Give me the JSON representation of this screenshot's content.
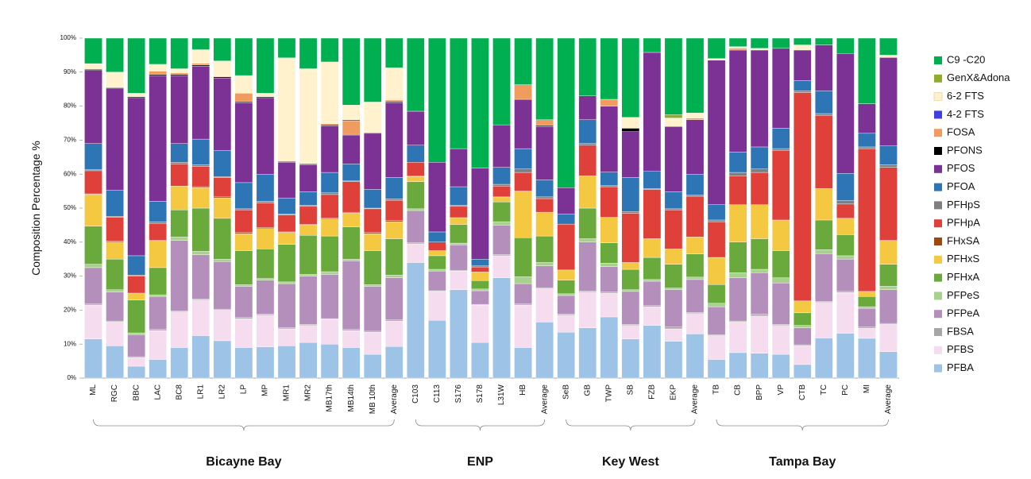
{
  "chart_data": {
    "type": "stacked_bar",
    "y_label": "Composition Percentage %",
    "categories": [
      "ML",
      "RGC",
      "BBC",
      "LAC",
      "BC8",
      "LR1",
      "LR2",
      "LP",
      "MP",
      "MR1",
      "MR2",
      "MB17th",
      "MB14th",
      "MB 10th",
      "Average",
      "C103",
      "C113",
      "S176",
      "S178",
      "L31W",
      "HB",
      "Average",
      "SeB",
      "GB",
      "TWP",
      "SB",
      "FZB",
      "EKP",
      "Average",
      "TB",
      "CB",
      "BPP",
      "VP",
      "CTB",
      "TC",
      "PC",
      "MI",
      "Average"
    ],
    "groups": [
      {
        "label": "Bicayne Bay",
        "span": [
          0,
          14
        ]
      },
      {
        "label": "ENP",
        "span": [
          15,
          21
        ]
      },
      {
        "label": "Key West",
        "span": [
          22,
          28
        ]
      },
      {
        "label": "Tampa Bay",
        "span": [
          29,
          37
        ]
      }
    ],
    "ylim": [
      0,
      100
    ],
    "yticks": [
      {
        "value": 0,
        "label": "0%"
      },
      {
        "value": 10,
        "label": "10%"
      },
      {
        "value": 20,
        "label": "20%"
      },
      {
        "value": 30,
        "label": "30%"
      },
      {
        "value": 40,
        "label": "40%"
      },
      {
        "value": 50,
        "label": "50%"
      },
      {
        "value": 60,
        "label": "60%"
      },
      {
        "value": 70,
        "label": "70%"
      },
      {
        "value": 80,
        "label": "80%"
      },
      {
        "value": 90,
        "label": "90%"
      },
      {
        "value": 100,
        "label": "100%"
      }
    ],
    "legend": "right",
    "series": [
      {
        "name": "PFBA",
        "color": "#9dc3e6",
        "values": [
          11.5,
          9.5,
          3.5,
          5.5,
          9,
          12.5,
          11,
          9,
          9.2,
          9.5,
          10.5,
          10,
          9,
          7,
          9.3,
          34,
          17,
          26,
          10.5,
          29.5,
          9,
          16.5,
          13.5,
          14.8,
          18,
          11.5,
          15.5,
          10.8,
          13,
          5.5,
          7.5,
          7.3,
          7,
          4,
          11.8,
          13.2,
          11.7,
          7.8
        ]
      },
      {
        "name": "PFBS",
        "color": "#f6dcef",
        "values": [
          10,
          7,
          2.5,
          8.5,
          10.5,
          10.5,
          9,
          8.5,
          9.3,
          5,
          5,
          7.3,
          5,
          6.5,
          7.5,
          5.5,
          8.5,
          5.5,
          11,
          6.5,
          12.5,
          9.8,
          5,
          10.5,
          7,
          4,
          5.5,
          3.7,
          6,
          7,
          9,
          11,
          8.5,
          5.5,
          10.5,
          12,
          3,
          8
        ]
      },
      {
        "name": "FBSA",
        "color": "#a6a6a6",
        "values": [
          0.3,
          0.3,
          0.3,
          0.3,
          0.3,
          0.3,
          0.3,
          0.3,
          0.3,
          0.3,
          0.3,
          0.2,
          0.3,
          0.3,
          0.3,
          0.3,
          0.2,
          0.2,
          0.2,
          0.3,
          0.3,
          0.3,
          0.3,
          0.3,
          0.3,
          0.3,
          0.3,
          0.5,
          0.3,
          0.3,
          0.3,
          0.5,
          0.3,
          0.3,
          0.3,
          0.3,
          0.3,
          0.3
        ]
      },
      {
        "name": "PFPeA",
        "color": "#b48fbc",
        "values": [
          10.7,
          8.5,
          6.5,
          9.7,
          20.7,
          13,
          14,
          9.2,
          10,
          13,
          14.2,
          13,
          20.2,
          13.2,
          12.4,
          9.5,
          5.8,
          7.5,
          4,
          8.7,
          6,
          6.4,
          5.5,
          14.4,
          7.5,
          9.7,
          7.2,
          11,
          9.7,
          8.2,
          12.7,
          12.2,
          12.2,
          5,
          14,
          9.5,
          5.5,
          9.9
        ]
      },
      {
        "name": "PFPeS",
        "color": "#a9d18e",
        "values": [
          1,
          0.7,
          0.5,
          0.5,
          1,
          1,
          0.7,
          0.5,
          0.5,
          0.5,
          0.5,
          0.8,
          0.5,
          0.5,
          0.8,
          0.5,
          0.5,
          0.5,
          0.5,
          1,
          2,
          1,
          0.5,
          1,
          1,
          0.5,
          0.5,
          0.5,
          0.7,
          1,
          1.5,
          1,
          1.5,
          0.7,
          1.2,
          1,
          0.5,
          1
        ]
      },
      {
        "name": "PFHxA",
        "color": "#6aaa3c",
        "values": [
          11.2,
          9,
          9.7,
          8,
          8,
          12.7,
          12,
          10,
          8.7,
          11,
          11.5,
          10.5,
          9.5,
          10,
          10.7,
          8,
          4,
          5.5,
          2.5,
          5.8,
          11.5,
          7.8,
          4,
          9,
          6,
          6,
          6.5,
          7,
          6.8,
          5.5,
          9,
          9,
          8,
          3.7,
          8.7,
          6.2,
          3,
          6.5
        ]
      },
      {
        "name": "PFHxS",
        "color": "#f5c842",
        "values": [
          9.3,
          5,
          2,
          8,
          7,
          6,
          6,
          5,
          6,
          3.5,
          3,
          5,
          4,
          5,
          5,
          1.5,
          1.5,
          2,
          2.5,
          1.5,
          13.7,
          7,
          3,
          9.5,
          7.5,
          2,
          5.5,
          4.5,
          5,
          8,
          11,
          10,
          9,
          3.5,
          9.3,
          4.8,
          1.5,
          7
        ]
      },
      {
        "name": "FHxSA",
        "color": "#9e480e",
        "values": [
          0.2,
          0.3,
          0,
          0,
          0,
          0.3,
          0.3,
          0.3,
          0.3,
          0.2,
          0.2,
          0.2,
          0.3,
          0.3,
          0.3,
          0.2,
          0,
          0,
          0,
          0,
          0,
          0,
          0,
          0,
          0,
          0,
          0,
          0,
          0,
          0,
          0,
          0,
          0,
          0,
          0,
          0,
          0,
          0
        ]
      },
      {
        "name": "PFHpA",
        "color": "#e0403a",
        "values": [
          6.8,
          7,
          5,
          5,
          6.5,
          6,
          5.7,
          6.7,
          7.2,
          5,
          5.3,
          7,
          9,
          7,
          6,
          4,
          2.5,
          3.3,
          1.5,
          3.2,
          5.5,
          4,
          13.5,
          9,
          9,
          14.5,
          14.5,
          11.5,
          12,
          10.5,
          8.5,
          9.5,
          20.5,
          61.3,
          21.5,
          4.2,
          42,
          21.5
        ]
      },
      {
        "name": "PFHpS",
        "color": "#7f7f7f",
        "values": [
          0.3,
          0.3,
          0.3,
          0.5,
          0.5,
          0.5,
          0.3,
          0.3,
          0.5,
          0.3,
          0.3,
          0.5,
          0.2,
          0.2,
          0.4,
          0,
          0,
          0.3,
          0.3,
          0.5,
          1,
          0.5,
          0,
          0.5,
          0.3,
          0.5,
          0.3,
          0.3,
          0.3,
          0.5,
          1,
          1,
          0.5,
          0.5,
          0.5,
          1,
          0.5,
          0.8
        ]
      },
      {
        "name": "PFOA",
        "color": "#2e75b6",
        "values": [
          7.7,
          7.7,
          5.7,
          6,
          5.5,
          7.5,
          7.7,
          7.7,
          8,
          4.7,
          4,
          6,
          5,
          5.5,
          6.3,
          5,
          3,
          5.5,
          2,
          5,
          6,
          5,
          3,
          7,
          4,
          10,
          5,
          5,
          6.2,
          4.5,
          6,
          6.5,
          6,
          3,
          6.7,
          8,
          4,
          5.5
        ]
      },
      {
        "name": "PFOS",
        "color": "#7b3294",
        "values": [
          21.5,
          30,
          46.5,
          37,
          20,
          21.5,
          21.3,
          23.5,
          22.5,
          10.5,
          8,
          13.7,
          8.5,
          16.5,
          22,
          10,
          20.5,
          11.2,
          26.8,
          12.5,
          14.5,
          15.7,
          7.7,
          7,
          19.4,
          13.5,
          35,
          19.2,
          16,
          42.5,
          30,
          28.5,
          23.5,
          9,
          13.5,
          35.3,
          8.7,
          26
        ]
      },
      {
        "name": "PFONS",
        "color": "#000000",
        "values": [
          0.3,
          0.2,
          0.3,
          0.3,
          0.3,
          0.3,
          0.3,
          0.3,
          0.3,
          0.2,
          0.2,
          0.3,
          0.2,
          0.2,
          0.3,
          0,
          0,
          0,
          0,
          0,
          0,
          0.3,
          0,
          0,
          0,
          1,
          0,
          0,
          0,
          0,
          0,
          0,
          0,
          0,
          0,
          0,
          0,
          0
        ]
      },
      {
        "name": "FOSA",
        "color": "#f19c5f",
        "values": [
          0.2,
          0,
          0,
          1,
          0.5,
          0.5,
          0.2,
          2.5,
          0,
          0,
          0,
          0.3,
          4,
          0,
          0.5,
          0,
          0,
          0,
          0,
          0,
          4.3,
          1.7,
          0,
          0,
          2,
          0,
          0,
          0,
          0.5,
          0,
          0.5,
          0,
          0,
          0,
          0,
          0,
          0,
          0.2
        ]
      },
      {
        "name": "4-2 FTS",
        "color": "#4040e0",
        "values": [
          0,
          0,
          0,
          0,
          0,
          0,
          0,
          0,
          0,
          0,
          0,
          0,
          0.3,
          0,
          0,
          0,
          0,
          0,
          0,
          0,
          0,
          0,
          0,
          0,
          0,
          0,
          0,
          0,
          0,
          0,
          0,
          0,
          0,
          0,
          0,
          0,
          0,
          0
        ]
      },
      {
        "name": "6-2 FTS",
        "color": "#fff2cc",
        "values": [
          1.5,
          4.5,
          1,
          2,
          1.2,
          4,
          4.5,
          5.2,
          1,
          30.5,
          28,
          18.2,
          4.3,
          9,
          9.5,
          0,
          0,
          0,
          0,
          0,
          0,
          0,
          0,
          0,
          0,
          3.2,
          0,
          2.5,
          1.5,
          0.5,
          0.5,
          0.5,
          0,
          1.5,
          0,
          0,
          0,
          0.5
        ]
      },
      {
        "name": "GenX&Adona",
        "color": "#8fac2f",
        "values": [
          0,
          0,
          0,
          0,
          0,
          0,
          0,
          0,
          0,
          0,
          0,
          0,
          0,
          0,
          0,
          0,
          0,
          0,
          0,
          0,
          0,
          0,
          0,
          0,
          0,
          0,
          0,
          1,
          0,
          0,
          0,
          0,
          0,
          0,
          0,
          0,
          0,
          0
        ]
      },
      {
        "name": "C9 -C20",
        "color": "#00b050",
        "values": [
          7.5,
          10,
          16.2,
          7.7,
          9,
          3.4,
          6.7,
          11,
          16.2,
          5.8,
          9,
          7,
          19.7,
          18.8,
          8.7,
          21.5,
          36.5,
          32.5,
          38.2,
          25.5,
          13.7,
          24,
          44,
          17,
          18,
          23.3,
          4.2,
          22.5,
          22,
          6,
          2.5,
          3,
          3,
          2,
          2,
          4.5,
          19.3,
          5
        ]
      }
    ]
  }
}
